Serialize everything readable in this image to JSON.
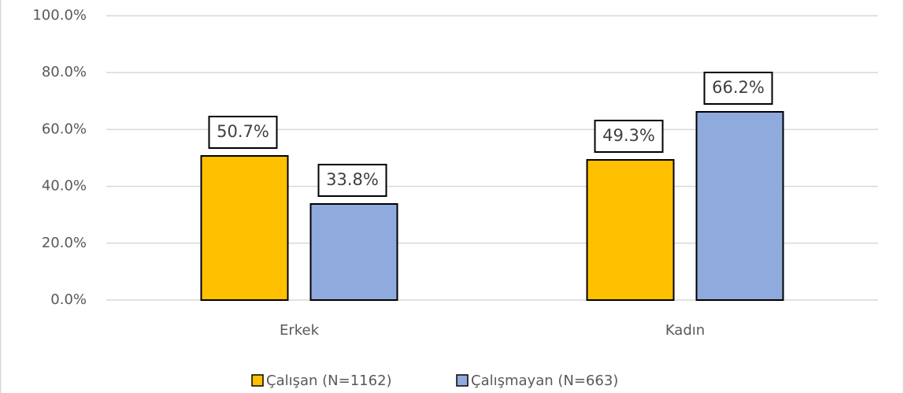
{
  "chart_data": {
    "type": "bar",
    "categories": [
      "Erkek",
      "Kadın"
    ],
    "series": [
      {
        "name": "Çalışan (N=1162)",
        "color": "#ffc000",
        "values": [
          50.7,
          49.3
        ],
        "value_labels": [
          "50.7%",
          "49.3%"
        ]
      },
      {
        "name": "Çalışmayan (N=663)",
        "color": "#8faadc",
        "values": [
          33.8,
          66.2
        ],
        "value_labels": [
          "33.8%",
          "66.2%"
        ]
      }
    ],
    "ylim": [
      0,
      100
    ],
    "yticks": [
      {
        "value": 0,
        "label": "0.0%"
      },
      {
        "value": 20,
        "label": "20.0%"
      },
      {
        "value": 40,
        "label": "40.0%"
      },
      {
        "value": 60,
        "label": "60.0%"
      },
      {
        "value": 80,
        "label": "80.0%"
      },
      {
        "value": 100,
        "label": "100.0%"
      }
    ],
    "grid": true,
    "legend": "bottom"
  }
}
